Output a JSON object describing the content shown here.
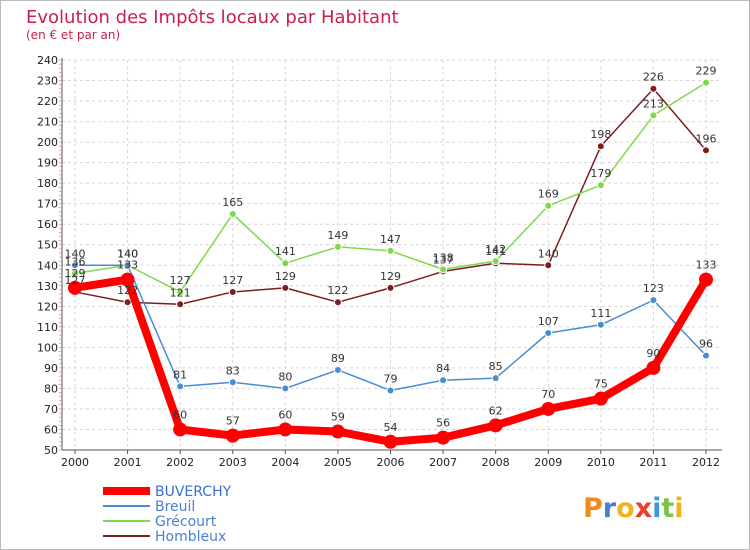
{
  "chart_data": {
    "type": "line",
    "title": "Evolution des Impôts locaux par Habitant",
    "subtitle": "(en € et par an)",
    "categories": [
      "2000",
      "2001",
      "2002",
      "2003",
      "2004",
      "2005",
      "2006",
      "2007",
      "2008",
      "2009",
      "2010",
      "2011",
      "2012"
    ],
    "ylim": [
      50,
      240
    ],
    "yticks": [
      50,
      60,
      70,
      80,
      90,
      100,
      110,
      120,
      130,
      140,
      150,
      160,
      170,
      180,
      190,
      200,
      210,
      220,
      230,
      240
    ],
    "grid": true,
    "legend_position": "bottom-left",
    "series": [
      {
        "name": "BUVERCHY",
        "color": "#ff0000",
        "values": [
          129,
          133,
          60,
          57,
          60,
          59,
          54,
          56,
          62,
          70,
          75,
          90,
          133
        ]
      },
      {
        "name": "Breuil",
        "color": "#4a8cd0",
        "values": [
          140,
          140,
          81,
          83,
          80,
          89,
          79,
          84,
          85,
          107,
          111,
          123,
          96
        ]
      },
      {
        "name": "Grécourt",
        "color": "#7fd84a",
        "values": [
          136,
          140,
          127,
          165,
          141,
          149,
          147,
          138,
          142,
          169,
          179,
          213,
          229
        ]
      },
      {
        "name": "Hombleux",
        "color": "#7a1f1f",
        "values": [
          127,
          122,
          121,
          127,
          129,
          122,
          129,
          137,
          141,
          140,
          198,
          226,
          196
        ]
      }
    ]
  },
  "logo": {
    "text": "Proxiti",
    "letters": [
      {
        "char": "P",
        "color": "#f08a1c"
      },
      {
        "char": "r",
        "color": "#4a7fd0"
      },
      {
        "char": "o",
        "color": "#f2b41e"
      },
      {
        "char": "x",
        "color": "#e8402a"
      },
      {
        "char": "i",
        "color": "#3a9ad8"
      },
      {
        "char": "t",
        "color": "#7dc242"
      },
      {
        "char": "i",
        "color": "#f2b41e"
      }
    ]
  }
}
